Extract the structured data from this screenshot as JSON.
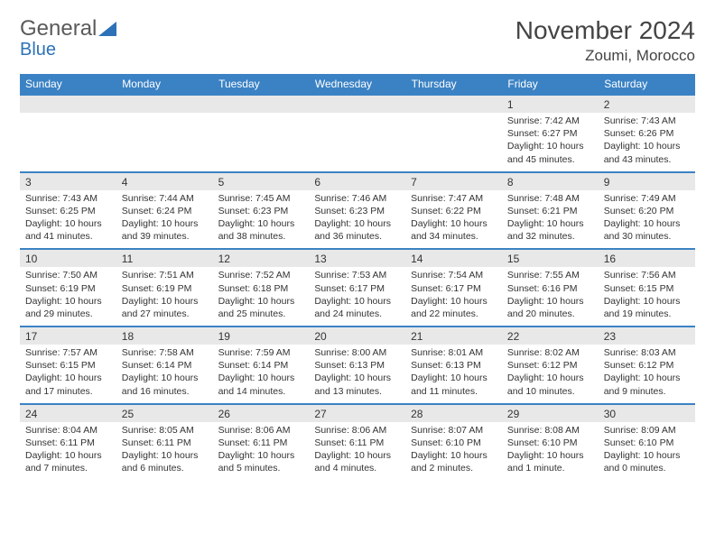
{
  "brand": {
    "part1": "General",
    "part2": "Blue"
  },
  "title": "November 2024",
  "location": "Zoumi, Morocco",
  "colors": {
    "header_bg": "#3b82c4",
    "header_text": "#ffffff",
    "numrow_bg": "#e8e8e8",
    "border": "#3b82c4",
    "text": "#333333"
  },
  "daynames": [
    "Sunday",
    "Monday",
    "Tuesday",
    "Wednesday",
    "Thursday",
    "Friday",
    "Saturday"
  ],
  "weeks": [
    [
      null,
      null,
      null,
      null,
      null,
      {
        "d": "1",
        "sunrise": "7:42 AM",
        "sunset": "6:27 PM",
        "daylight": "10 hours and 45 minutes."
      },
      {
        "d": "2",
        "sunrise": "7:43 AM",
        "sunset": "6:26 PM",
        "daylight": "10 hours and 43 minutes."
      }
    ],
    [
      {
        "d": "3",
        "sunrise": "7:43 AM",
        "sunset": "6:25 PM",
        "daylight": "10 hours and 41 minutes."
      },
      {
        "d": "4",
        "sunrise": "7:44 AM",
        "sunset": "6:24 PM",
        "daylight": "10 hours and 39 minutes."
      },
      {
        "d": "5",
        "sunrise": "7:45 AM",
        "sunset": "6:23 PM",
        "daylight": "10 hours and 38 minutes."
      },
      {
        "d": "6",
        "sunrise": "7:46 AM",
        "sunset": "6:23 PM",
        "daylight": "10 hours and 36 minutes."
      },
      {
        "d": "7",
        "sunrise": "7:47 AM",
        "sunset": "6:22 PM",
        "daylight": "10 hours and 34 minutes."
      },
      {
        "d": "8",
        "sunrise": "7:48 AM",
        "sunset": "6:21 PM",
        "daylight": "10 hours and 32 minutes."
      },
      {
        "d": "9",
        "sunrise": "7:49 AM",
        "sunset": "6:20 PM",
        "daylight": "10 hours and 30 minutes."
      }
    ],
    [
      {
        "d": "10",
        "sunrise": "7:50 AM",
        "sunset": "6:19 PM",
        "daylight": "10 hours and 29 minutes."
      },
      {
        "d": "11",
        "sunrise": "7:51 AM",
        "sunset": "6:19 PM",
        "daylight": "10 hours and 27 minutes."
      },
      {
        "d": "12",
        "sunrise": "7:52 AM",
        "sunset": "6:18 PM",
        "daylight": "10 hours and 25 minutes."
      },
      {
        "d": "13",
        "sunrise": "7:53 AM",
        "sunset": "6:17 PM",
        "daylight": "10 hours and 24 minutes."
      },
      {
        "d": "14",
        "sunrise": "7:54 AM",
        "sunset": "6:17 PM",
        "daylight": "10 hours and 22 minutes."
      },
      {
        "d": "15",
        "sunrise": "7:55 AM",
        "sunset": "6:16 PM",
        "daylight": "10 hours and 20 minutes."
      },
      {
        "d": "16",
        "sunrise": "7:56 AM",
        "sunset": "6:15 PM",
        "daylight": "10 hours and 19 minutes."
      }
    ],
    [
      {
        "d": "17",
        "sunrise": "7:57 AM",
        "sunset": "6:15 PM",
        "daylight": "10 hours and 17 minutes."
      },
      {
        "d": "18",
        "sunrise": "7:58 AM",
        "sunset": "6:14 PM",
        "daylight": "10 hours and 16 minutes."
      },
      {
        "d": "19",
        "sunrise": "7:59 AM",
        "sunset": "6:14 PM",
        "daylight": "10 hours and 14 minutes."
      },
      {
        "d": "20",
        "sunrise": "8:00 AM",
        "sunset": "6:13 PM",
        "daylight": "10 hours and 13 minutes."
      },
      {
        "d": "21",
        "sunrise": "8:01 AM",
        "sunset": "6:13 PM",
        "daylight": "10 hours and 11 minutes."
      },
      {
        "d": "22",
        "sunrise": "8:02 AM",
        "sunset": "6:12 PM",
        "daylight": "10 hours and 10 minutes."
      },
      {
        "d": "23",
        "sunrise": "8:03 AM",
        "sunset": "6:12 PM",
        "daylight": "10 hours and 9 minutes."
      }
    ],
    [
      {
        "d": "24",
        "sunrise": "8:04 AM",
        "sunset": "6:11 PM",
        "daylight": "10 hours and 7 minutes."
      },
      {
        "d": "25",
        "sunrise": "8:05 AM",
        "sunset": "6:11 PM",
        "daylight": "10 hours and 6 minutes."
      },
      {
        "d": "26",
        "sunrise": "8:06 AM",
        "sunset": "6:11 PM",
        "daylight": "10 hours and 5 minutes."
      },
      {
        "d": "27",
        "sunrise": "8:06 AM",
        "sunset": "6:11 PM",
        "daylight": "10 hours and 4 minutes."
      },
      {
        "d": "28",
        "sunrise": "8:07 AM",
        "sunset": "6:10 PM",
        "daylight": "10 hours and 2 minutes."
      },
      {
        "d": "29",
        "sunrise": "8:08 AM",
        "sunset": "6:10 PM",
        "daylight": "10 hours and 1 minute."
      },
      {
        "d": "30",
        "sunrise": "8:09 AM",
        "sunset": "6:10 PM",
        "daylight": "10 hours and 0 minutes."
      }
    ]
  ]
}
